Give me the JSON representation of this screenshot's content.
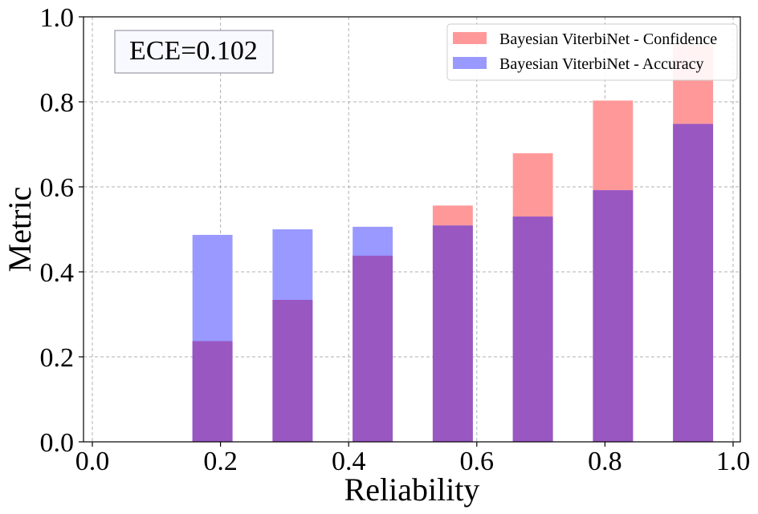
{
  "chart_data": {
    "type": "bar",
    "xlabel": "Reliability",
    "ylabel": "Metric",
    "xlim": [
      0.0,
      1.0
    ],
    "ylim": [
      0.0,
      1.0
    ],
    "xticks": [
      "0.0",
      "0.2",
      "0.4",
      "0.6",
      "0.8",
      "1.0"
    ],
    "yticks": [
      "0.0",
      "0.2",
      "0.4",
      "0.6",
      "0.8",
      "1.0"
    ],
    "grid": true,
    "legend_position": "top-right",
    "annotation": "ECE=0.102",
    "bar_centers": [
      0.1875,
      0.3125,
      0.4375,
      0.5625,
      0.6875,
      0.8125,
      0.9375
    ],
    "bar_width": 0.0625,
    "series": [
      {
        "name": "Bayesian ViterbiNet - Confidence",
        "color": "#ff9999",
        "values": [
          0.237,
          0.334,
          0.438,
          0.556,
          0.679,
          0.803,
          0.935
        ]
      },
      {
        "name": "Bayesian ViterbiNet - Accuracy",
        "color": "#9999ff",
        "values": [
          0.487,
          0.5,
          0.506,
          0.509,
          0.53,
          0.592,
          0.748
        ]
      }
    ],
    "overlap_color": "#9957c2"
  }
}
